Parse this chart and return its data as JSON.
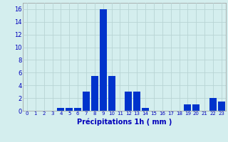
{
  "values": [
    0,
    0,
    0,
    0,
    0.5,
    0.5,
    0.5,
    3,
    5.5,
    16,
    5.5,
    0,
    3,
    3,
    0.5,
    0,
    0,
    0,
    0,
    1,
    1,
    0,
    2,
    1.5
  ],
  "xlabel": "Précipitations 1h ( mm )",
  "ylim": [
    0,
    17
  ],
  "yticks": [
    0,
    2,
    4,
    6,
    8,
    10,
    12,
    14,
    16
  ],
  "bar_color": "#0033cc",
  "background_color": "#d4eeee",
  "grid_color": "#b8d4d4",
  "label_color": "#0000bb",
  "tick_fontsize": 5.0,
  "xlabel_fontsize": 7.0,
  "ytick_fontsize": 6.0
}
